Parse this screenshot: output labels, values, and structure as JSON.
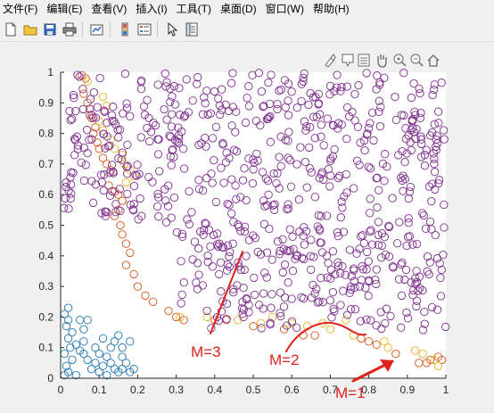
{
  "menu": {
    "items": [
      "文件(F)",
      "编辑(E)",
      "查看(V)",
      "插入(I)",
      "工具(T)",
      "桌面(D)",
      "窗口(W)",
      "帮助(H)"
    ]
  },
  "toolbar": {
    "buttons": [
      "new-file-icon",
      "open-folder-icon",
      "save-icon",
      "print-icon",
      "link-plot-icon",
      "insert-colorbar-icon",
      "insert-legend-icon",
      "edit-pointer-icon",
      "property-inspector-icon"
    ]
  },
  "axes_toolbar": [
    "brush-icon",
    "data-tip-icon",
    "restore-view-icon",
    "pan-hand-icon",
    "zoom-in-icon",
    "zoom-out-icon",
    "home-icon"
  ],
  "chart_data": {
    "type": "scatter",
    "title": "",
    "xlabel": "",
    "ylabel": "",
    "xlim": [
      0,
      1
    ],
    "ylim": [
      0,
      1
    ],
    "xticks": [
      "0",
      "0.1",
      "0.2",
      "0.3",
      "0.4",
      "0.5",
      "0.6",
      "0.7",
      "0.8",
      "0.9",
      "1"
    ],
    "yticks": [
      "0",
      "0.1",
      "0.2",
      "0.3",
      "0.4",
      "0.5",
      "0.6",
      "0.7",
      "0.8",
      "0.9",
      "1"
    ],
    "marker": "open-circle",
    "colors": {
      "cluster_blue": "#1f77b4",
      "cluster_orange_dark": "#d95319",
      "cluster_orange_light": "#edb120",
      "cluster_purple": "#7e2f8e",
      "annotation_red": "#e0201c"
    },
    "series": [
      {
        "color_key": "cluster_blue",
        "points": [
          [
            0.01,
            0.21
          ],
          [
            0.02,
            0.19
          ],
          [
            0.015,
            0.17
          ],
          [
            0.03,
            0.15
          ],
          [
            0.02,
            0.13
          ],
          [
            0.025,
            0.1
          ],
          [
            0.01,
            0.08
          ],
          [
            0.03,
            0.06
          ],
          [
            0.015,
            0.04
          ],
          [
            0.02,
            0.02
          ],
          [
            0.01,
            0.01
          ],
          [
            0.04,
            0.01
          ],
          [
            0.05,
            0.19
          ],
          [
            0.06,
            0.16
          ],
          [
            0.07,
            0.19
          ],
          [
            0.06,
            0.12
          ],
          [
            0.06,
            0.08
          ],
          [
            0.07,
            0.06
          ],
          [
            0.08,
            0.03
          ],
          [
            0.09,
            0.05
          ],
          [
            0.1,
            0.02
          ],
          [
            0.11,
            0.04
          ],
          [
            0.12,
            0.07
          ],
          [
            0.13,
            0.05
          ],
          [
            0.14,
            0.03
          ],
          [
            0.15,
            0.02
          ],
          [
            0.16,
            0.03
          ],
          [
            0.17,
            0.05
          ],
          [
            0.18,
            0.02
          ],
          [
            0.19,
            0.03
          ],
          [
            0.13,
            0.1
          ],
          [
            0.14,
            0.12
          ],
          [
            0.16,
            0.1
          ],
          [
            0.15,
            0.14
          ],
          [
            0.18,
            0.12
          ],
          [
            0.09,
            0.1
          ],
          [
            0.1,
            0.08
          ],
          [
            0.11,
            0.13
          ],
          [
            0.05,
            0.09
          ],
          [
            0.04,
            0.11
          ],
          [
            0.12,
            0.01
          ],
          [
            0.16,
            0.07
          ],
          [
            0.02,
            0.23
          ]
        ]
      },
      {
        "color_key": "cluster_orange_dark",
        "points": [
          [
            0.055,
            0.99
          ],
          [
            0.065,
            0.98
          ],
          [
            0.06,
            0.93
          ],
          [
            0.07,
            0.9
          ],
          [
            0.075,
            0.86
          ],
          [
            0.08,
            0.85
          ],
          [
            0.09,
            0.82
          ],
          [
            0.085,
            0.8
          ],
          [
            0.095,
            0.77
          ],
          [
            0.1,
            0.75
          ],
          [
            0.11,
            0.72
          ],
          [
            0.12,
            0.7
          ],
          [
            0.13,
            0.68
          ],
          [
            0.125,
            0.63
          ],
          [
            0.14,
            0.61
          ],
          [
            0.15,
            0.6
          ],
          [
            0.16,
            0.58
          ],
          [
            0.15,
            0.55
          ],
          [
            0.14,
            0.53
          ],
          [
            0.155,
            0.5
          ],
          [
            0.16,
            0.47
          ],
          [
            0.17,
            0.44
          ],
          [
            0.18,
            0.41
          ],
          [
            0.17,
            0.37
          ],
          [
            0.19,
            0.34
          ],
          [
            0.2,
            0.3
          ],
          [
            0.22,
            0.27
          ],
          [
            0.24,
            0.25
          ],
          [
            0.28,
            0.22
          ],
          [
            0.3,
            0.2
          ],
          [
            0.32,
            0.19
          ],
          [
            0.4,
            0.19
          ],
          [
            0.43,
            0.19
          ],
          [
            0.5,
            0.17
          ],
          [
            0.58,
            0.16
          ],
          [
            0.63,
            0.14
          ],
          [
            0.66,
            0.14
          ],
          [
            0.78,
            0.13
          ],
          [
            0.8,
            0.12
          ],
          [
            0.82,
            0.11
          ],
          [
            0.87,
            0.08
          ],
          [
            0.96,
            0.06
          ],
          [
            0.98,
            0.07
          ],
          [
            0.93,
            0.05
          ],
          [
            0.95,
            0.05
          ],
          [
            0.99,
            0.06
          ]
        ]
      },
      {
        "color_key": "cluster_orange_light",
        "points": [
          [
            0.07,
            0.97
          ],
          [
            0.11,
            0.92
          ],
          [
            0.12,
            0.89
          ],
          [
            0.1,
            0.84
          ],
          [
            0.11,
            0.81
          ],
          [
            0.13,
            0.78
          ],
          [
            0.14,
            0.75
          ],
          [
            0.16,
            0.73
          ],
          [
            0.165,
            0.7
          ],
          [
            0.18,
            0.68
          ],
          [
            0.19,
            0.66
          ],
          [
            0.17,
            0.64
          ],
          [
            0.31,
            0.2
          ],
          [
            0.38,
            0.2
          ],
          [
            0.46,
            0.19
          ],
          [
            0.52,
            0.18
          ],
          [
            0.55,
            0.2
          ],
          [
            0.6,
            0.18
          ],
          [
            0.64,
            0.17
          ],
          [
            0.68,
            0.18
          ],
          [
            0.7,
            0.16
          ],
          [
            0.74,
            0.19
          ],
          [
            0.76,
            0.14
          ],
          [
            0.85,
            0.1
          ],
          [
            0.84,
            0.12
          ],
          [
            0.92,
            0.09
          ],
          [
            0.94,
            0.08
          ],
          [
            0.97,
            0.06
          ],
          [
            0.98,
            0.04
          ]
        ]
      },
      {
        "color_key": "cluster_purple",
        "count": 760,
        "region": "points with x + y above roughly 0.55 and y above roughly 0.15, filling the upper-right area of the axes"
      }
    ],
    "annotations": [
      {
        "text": "M=3"
      },
      {
        "text": "M=2"
      },
      {
        "text": "M=1"
      }
    ]
  }
}
